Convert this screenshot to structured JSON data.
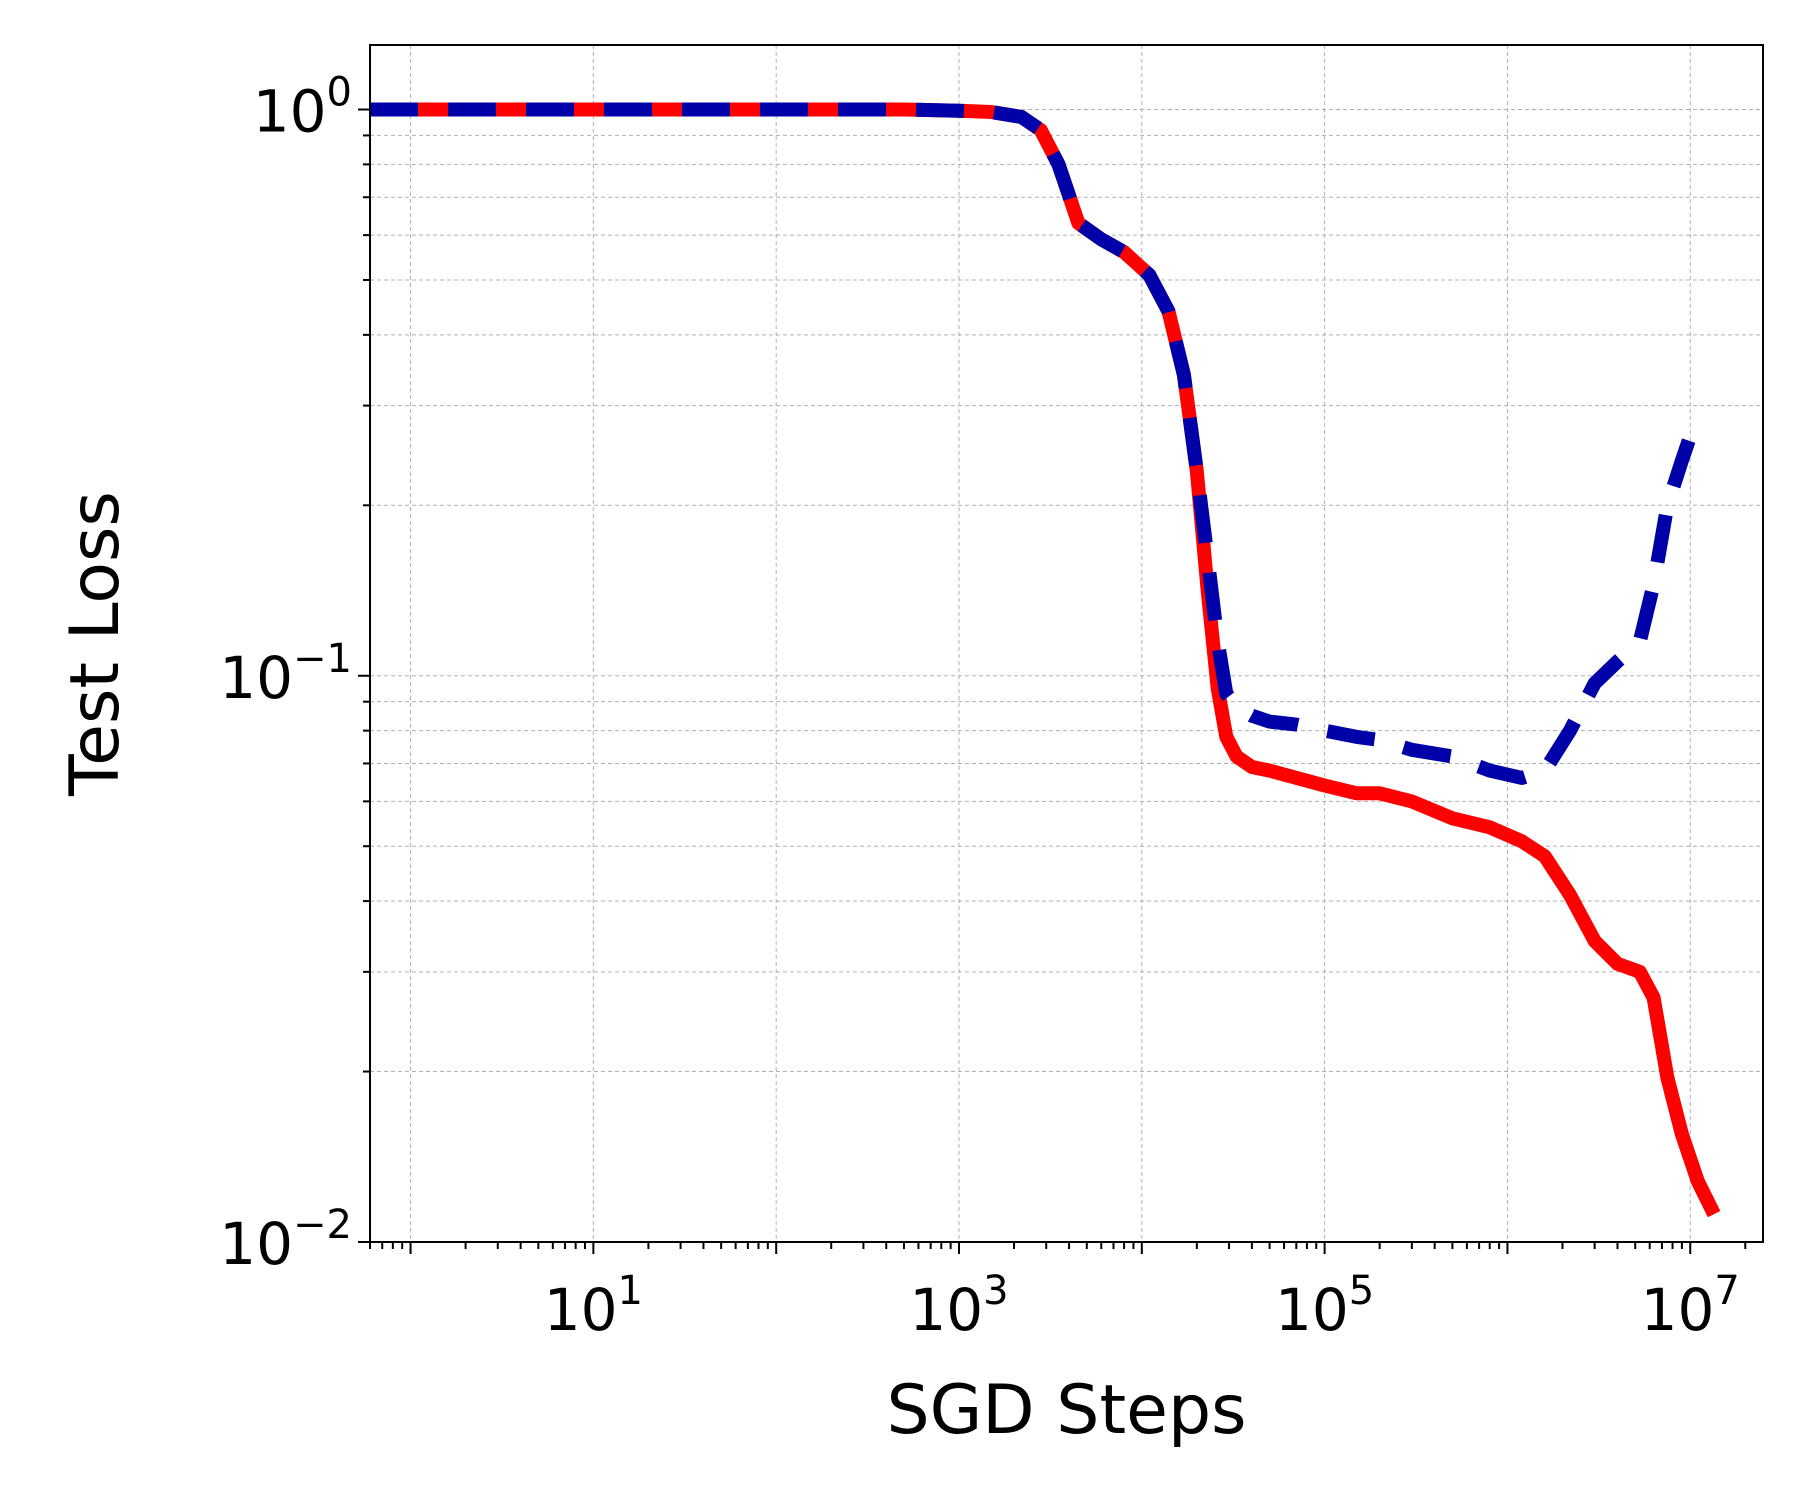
{
  "chart_data": {
    "type": "line",
    "title": "",
    "xlabel": "SGD Steps",
    "ylabel": "Test Loss",
    "xscale": "log",
    "yscale": "log",
    "xlim": [
      0.6,
      25000000
    ],
    "ylim": [
      0.01,
      1.3
    ],
    "xticks": [
      {
        "base": "10",
        "exp": "1",
        "value": 10
      },
      {
        "base": "10",
        "exp": "3",
        "value": 1000
      },
      {
        "base": "10",
        "exp": "5",
        "value": 100000
      },
      {
        "base": "10",
        "exp": "7",
        "value": 10000000
      }
    ],
    "yticks": [
      {
        "base": "10",
        "exp": "0",
        "value": 1
      },
      {
        "base": "10",
        "exp": "−1",
        "value": 0.1
      },
      {
        "base": "10",
        "exp": "−2",
        "value": 0.01
      }
    ],
    "grid": true,
    "legend": "none",
    "series": [
      {
        "color": "#ff0000",
        "style": "solid",
        "x": [
          0.6,
          10,
          100,
          500,
          1000,
          1500,
          2200,
          2800,
          3500,
          4500,
          6000,
          8000,
          11000,
          14000,
          17000,
          20000,
          23000,
          26000,
          29000,
          33000,
          40000,
          50000,
          70000,
          100000,
          150000,
          200000,
          300000,
          500000,
          800000,
          1200000,
          1600000,
          2200000,
          3000000,
          4000000,
          5300000,
          6300000,
          7500000,
          9000000,
          11000000,
          13500000
        ],
        "y": [
          1.0,
          1.0,
          1.0,
          1.0,
          0.995,
          0.99,
          0.97,
          0.92,
          0.8,
          0.63,
          0.59,
          0.56,
          0.51,
          0.44,
          0.34,
          0.23,
          0.14,
          0.095,
          0.078,
          0.072,
          0.069,
          0.068,
          0.066,
          0.064,
          0.062,
          0.062,
          0.06,
          0.056,
          0.054,
          0.051,
          0.048,
          0.041,
          0.034,
          0.031,
          0.03,
          0.027,
          0.0195,
          0.0155,
          0.0128,
          0.0112
        ]
      },
      {
        "color": "#0000a8",
        "style": "dashed",
        "x": [
          0.6,
          10,
          100,
          500,
          1000,
          1500,
          2200,
          2800,
          3500,
          4500,
          6000,
          8000,
          11000,
          14000,
          17000,
          20000,
          23000,
          26000,
          29000,
          33000,
          40000,
          50000,
          70000,
          100000,
          150000,
          200000,
          300000,
          500000,
          800000,
          1200000,
          1600000,
          2200000,
          3000000,
          4000000,
          5300000,
          6300000,
          7500000,
          9000000,
          11000000
        ],
        "y": [
          1.0,
          1.0,
          1.0,
          1.0,
          0.995,
          0.99,
          0.97,
          0.92,
          0.8,
          0.63,
          0.59,
          0.56,
          0.51,
          0.44,
          0.34,
          0.23,
          0.16,
          0.115,
          0.093,
          0.088,
          0.085,
          0.083,
          0.082,
          0.08,
          0.078,
          0.077,
          0.074,
          0.072,
          0.068,
          0.066,
          0.068,
          0.08,
          0.097,
          0.106,
          0.115,
          0.145,
          0.2,
          0.24,
          0.29
        ]
      }
    ]
  }
}
